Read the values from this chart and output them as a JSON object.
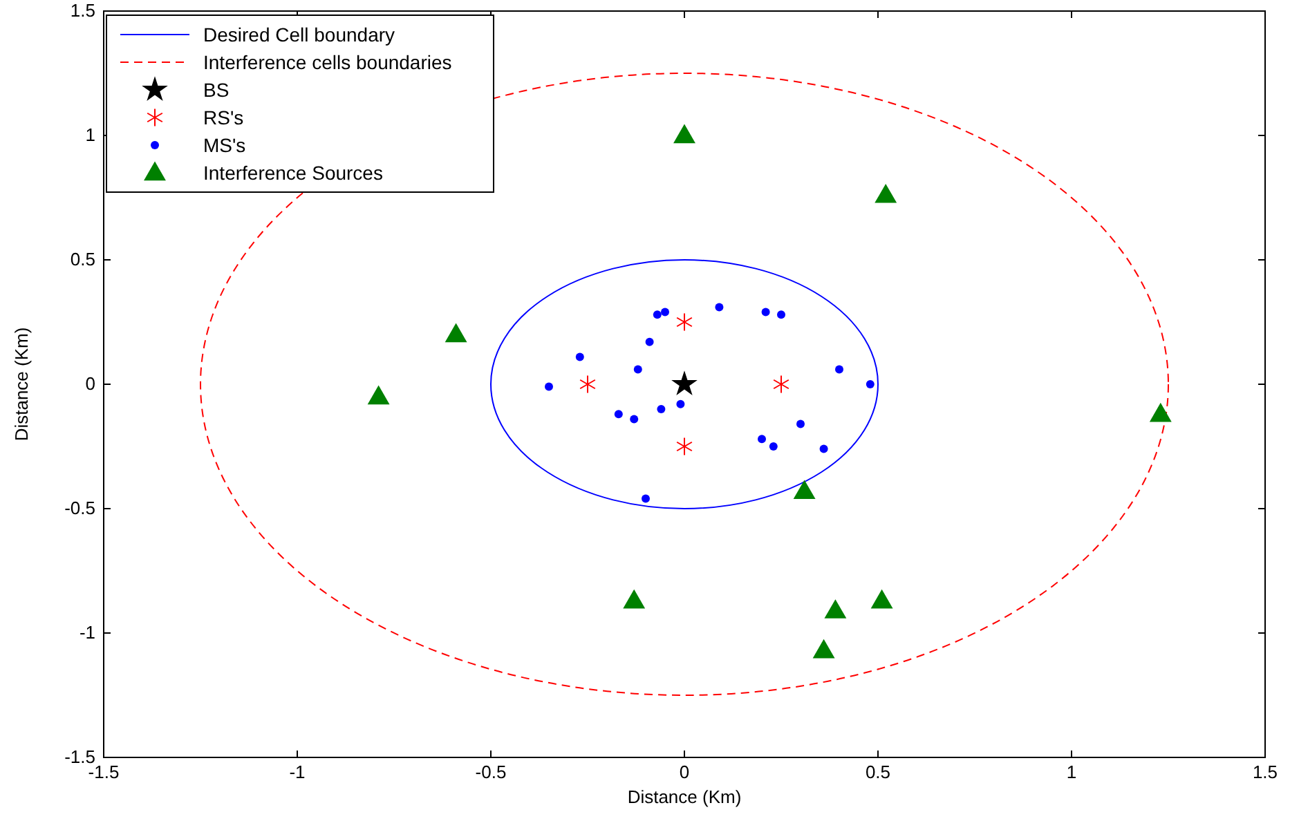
{
  "chart_data": {
    "type": "scatter",
    "xlabel": "Distance (Km)",
    "ylabel": "Distance (Km)",
    "xlim": [
      -1.5,
      1.5
    ],
    "ylim": [
      -1.5,
      1.5
    ],
    "xticks": [
      -1.5,
      -1,
      -0.5,
      0,
      0.5,
      1,
      1.5
    ],
    "yticks": [
      -1.5,
      -1,
      -0.5,
      0,
      0.5,
      1,
      1.5
    ],
    "grid": false,
    "legend": "top left",
    "annotations": [
      "Desired Cell boundary",
      "Interference cells boundaries"
    ],
    "series": [
      {
        "name": "BS",
        "type": "scatter",
        "color": "#000000",
        "marker": "star",
        "x": [
          0
        ],
        "values": [
          0
        ]
      },
      {
        "name": "RS's",
        "type": "scatter",
        "color": "#ff0000",
        "marker": "cross",
        "x": [
          -0.25,
          0.25,
          0,
          0
        ],
        "values": [
          0,
          0,
          0.25,
          -0.25
        ]
      },
      {
        "name": "MS's",
        "type": "scatter",
        "color": "#0000ff",
        "marker": "circle",
        "x": [
          -0.07,
          -0.05,
          0.09,
          0.21,
          0.25,
          -0.09,
          -0.27,
          -0.12,
          -0.35,
          0.4,
          0.48,
          -0.17,
          -0.13,
          -0.06,
          -0.01,
          0.2,
          0.23,
          0.3,
          0.36,
          -0.1
        ],
        "values": [
          0.28,
          0.29,
          0.31,
          0.29,
          0.28,
          0.17,
          0.11,
          0.06,
          -0.01,
          0.06,
          0,
          -0.12,
          -0.14,
          -0.1,
          -0.08,
          -0.22,
          -0.25,
          -0.16,
          -0.26,
          -0.46
        ]
      },
      {
        "name": "Interference Sources",
        "type": "scatter",
        "color": "#008000",
        "marker": "triangle",
        "x": [
          0,
          0.52,
          -0.59,
          -0.79,
          1.23,
          0.31,
          -0.13,
          0.39,
          0.51,
          0.36
        ],
        "values": [
          1,
          0.76,
          0.2,
          -0.05,
          -0.12,
          -0.43,
          -0.87,
          -0.91,
          -0.87,
          -1.07
        ]
      }
    ]
  }
}
